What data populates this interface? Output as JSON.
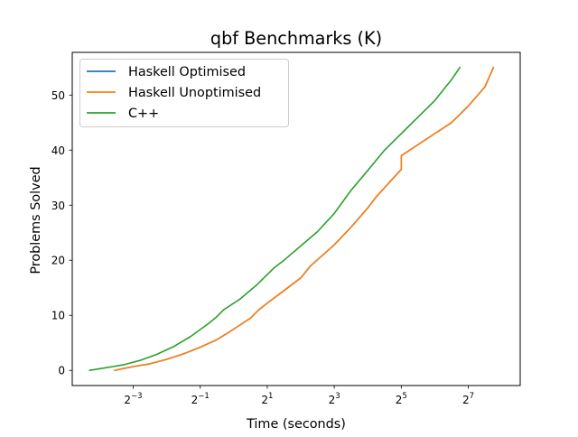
{
  "chart_data": {
    "type": "line",
    "title": "qbf Benchmarks (K)",
    "xlabel": "Time (seconds)",
    "ylabel": "Problems Solved",
    "xscale": "log2",
    "xlim_log2": [
      -4.82,
      8.55
    ],
    "ylim": [
      -2.75,
      57.75
    ],
    "xticks": [
      {
        "exp": -3,
        "base": "2",
        "sup": "−3"
      },
      {
        "exp": -1,
        "base": "2",
        "sup": "−1"
      },
      {
        "exp": 1,
        "base": "2",
        "sup": "1"
      },
      {
        "exp": 3,
        "base": "2",
        "sup": "3"
      },
      {
        "exp": 5,
        "base": "2",
        "sup": "5"
      },
      {
        "exp": 7,
        "base": "2",
        "sup": "7"
      }
    ],
    "yticks": [
      0,
      10,
      20,
      30,
      40,
      50
    ],
    "legend_position": "upper-left",
    "grid": false,
    "series": [
      {
        "name": "Haskell Optimised",
        "color": "#1f77b4",
        "points_log2x": [
          [
            -3.55,
            0
          ],
          [
            -3,
            0.7
          ],
          [
            -2.5,
            1.2
          ],
          [
            -2,
            2
          ],
          [
            -1.5,
            3
          ],
          [
            -1,
            4.2
          ],
          [
            -0.5,
            5.6
          ],
          [
            0,
            7.5
          ],
          [
            0.5,
            9.5
          ],
          [
            0.75,
            11
          ],
          [
            1,
            12.2
          ],
          [
            1.5,
            14.5
          ],
          [
            2,
            16.8
          ],
          [
            2.3,
            19
          ],
          [
            3,
            22.8
          ],
          [
            3.5,
            26
          ],
          [
            4,
            29.5
          ],
          [
            4.25,
            31.5
          ],
          [
            5,
            36.5
          ],
          [
            5,
            37.5
          ],
          [
            5,
            39
          ],
          [
            6,
            43
          ],
          [
            6.5,
            45
          ],
          [
            7,
            48
          ],
          [
            7.5,
            51.5
          ],
          [
            7.75,
            55
          ]
        ]
      },
      {
        "name": "Haskell Unoptimised",
        "color": "#ff7f0e",
        "points_log2x": [
          [
            -3.55,
            0
          ],
          [
            -3,
            0.7
          ],
          [
            -2.5,
            1.2
          ],
          [
            -2,
            2
          ],
          [
            -1.5,
            3
          ],
          [
            -1,
            4.2
          ],
          [
            -0.5,
            5.6
          ],
          [
            0,
            7.5
          ],
          [
            0.5,
            9.5
          ],
          [
            0.75,
            11
          ],
          [
            1,
            12.2
          ],
          [
            1.5,
            14.5
          ],
          [
            2,
            16.8
          ],
          [
            2.3,
            19
          ],
          [
            3,
            22.8
          ],
          [
            3.5,
            26
          ],
          [
            4,
            29.5
          ],
          [
            4.25,
            31.5
          ],
          [
            5,
            36.5
          ],
          [
            5,
            37.5
          ],
          [
            5,
            39
          ],
          [
            6,
            43
          ],
          [
            6.5,
            45
          ],
          [
            7,
            48
          ],
          [
            7.5,
            51.5
          ],
          [
            7.75,
            55
          ]
        ]
      },
      {
        "name": "C++",
        "color": "#2ca02c",
        "points_log2x": [
          [
            -4.3,
            0
          ],
          [
            -3.8,
            0.5
          ],
          [
            -3.3,
            1
          ],
          [
            -2.8,
            1.8
          ],
          [
            -2.3,
            2.9
          ],
          [
            -1.8,
            4.3
          ],
          [
            -1.3,
            6.1
          ],
          [
            -0.8,
            8.3
          ],
          [
            -0.55,
            9.5
          ],
          [
            -0.3,
            11
          ],
          [
            0.2,
            13
          ],
          [
            0.7,
            15.6
          ],
          [
            1.2,
            18.6
          ],
          [
            1.5,
            20
          ],
          [
            2,
            22.6
          ],
          [
            2.5,
            25.2
          ],
          [
            3,
            28.5
          ],
          [
            3.5,
            32.7
          ],
          [
            4,
            36.3
          ],
          [
            4.5,
            40
          ],
          [
            5,
            43
          ],
          [
            5.5,
            46
          ],
          [
            6,
            49
          ],
          [
            6.5,
            52.8
          ],
          [
            6.75,
            55
          ]
        ]
      }
    ]
  }
}
